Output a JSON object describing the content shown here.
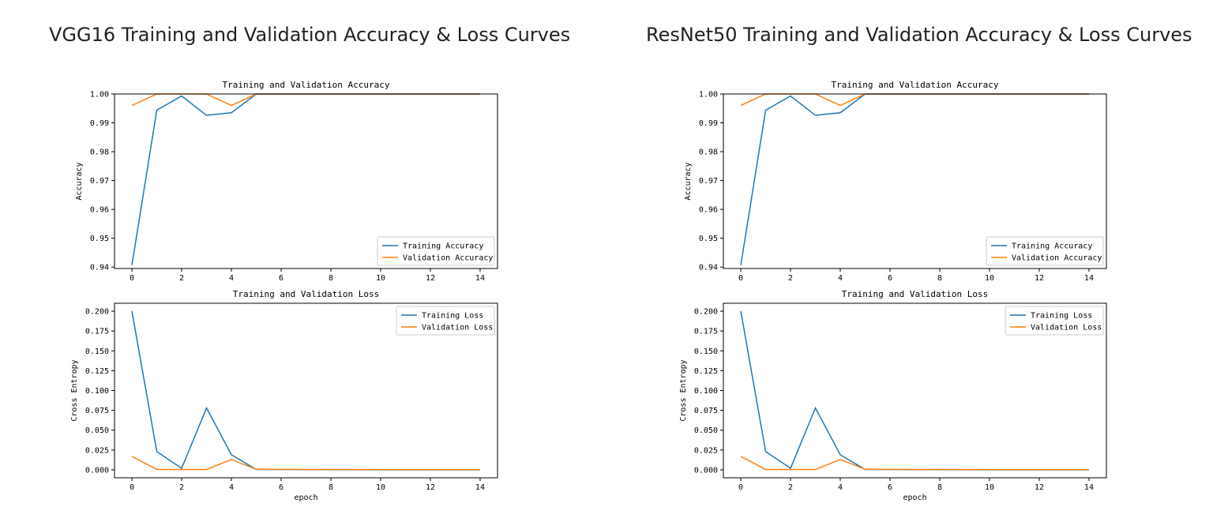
{
  "panels": [
    {
      "title": "VGG16 Training and Validation Accuracy & Loss Curves",
      "chart_data": [
        {
          "type": "line",
          "title": "Training and Validation Accuracy",
          "xlabel": "",
          "ylabel": "Accuracy",
          "xlim": [
            -0.7,
            14.7
          ],
          "ylim": [
            0.9395,
            1.0
          ],
          "xticks": [
            0,
            2,
            4,
            6,
            8,
            10,
            12,
            14
          ],
          "yticks": [
            0.94,
            0.95,
            0.96,
            0.97,
            0.98,
            0.99,
            1.0
          ],
          "ytick_labels": [
            "0.94",
            "0.95",
            "0.96",
            "0.97",
            "0.98",
            "0.99",
            "1.00"
          ],
          "legend_position": "lower-right",
          "series": [
            {
              "name": "Training Accuracy",
              "color": "#1f77b4",
              "x": [
                0,
                1,
                2,
                3,
                4,
                5,
                6,
                7,
                8,
                9,
                10,
                11,
                12,
                13,
                14
              ],
              "y": [
                0.9407,
                0.9944,
                0.9993,
                0.9926,
                0.9935,
                1.0,
                1.0,
                1.0,
                1.0,
                1.0,
                1.0,
                1.0,
                1.0,
                1.0,
                1.0
              ]
            },
            {
              "name": "Validation Accuracy",
              "color": "#ff7f0e",
              "x": [
                0,
                1,
                2,
                3,
                4,
                5,
                6,
                7,
                8,
                9,
                10,
                11,
                12,
                13,
                14
              ],
              "y": [
                0.996,
                1.0,
                1.0,
                1.0,
                0.996,
                1.0,
                1.0,
                1.0,
                1.0,
                1.0,
                1.0,
                1.0,
                1.0,
                1.0,
                1.0
              ]
            }
          ]
        },
        {
          "type": "line",
          "title": "Training and Validation Loss",
          "xlabel": "epoch",
          "ylabel": "Cross Entropy",
          "xlim": [
            -0.7,
            14.7
          ],
          "ylim": [
            -0.01,
            0.21
          ],
          "xticks": [
            0,
            2,
            4,
            6,
            8,
            10,
            12,
            14
          ],
          "yticks": [
            0.0,
            0.025,
            0.05,
            0.075,
            0.1,
            0.125,
            0.15,
            0.175,
            0.2
          ],
          "ytick_labels": [
            "0.000",
            "0.025",
            "0.050",
            "0.075",
            "0.100",
            "0.125",
            "0.150",
            "0.175",
            "0.200"
          ],
          "legend_position": "upper-right",
          "series": [
            {
              "name": "Training Loss",
              "color": "#1f77b4",
              "x": [
                0,
                1,
                2,
                3,
                4,
                5,
                6,
                7,
                8,
                9,
                10,
                11,
                12,
                13,
                14
              ],
              "y": [
                0.2,
                0.023,
                0.002,
                0.078,
                0.019,
                0.0005,
                0.0004,
                0.0003,
                0.0002,
                0.0002,
                0.0001,
                0.0001,
                0.0001,
                0.0001,
                0.0001
              ]
            },
            {
              "name": "Validation Loss",
              "color": "#ff7f0e",
              "x": [
                0,
                1,
                2,
                3,
                4,
                5,
                6,
                7,
                8,
                9,
                10,
                11,
                12,
                13,
                14
              ],
              "y": [
                0.017,
                0.0005,
                0.0005,
                0.0005,
                0.013,
                0.0008,
                0.0006,
                0.0005,
                0.0004,
                0.0004,
                0.0003,
                0.0003,
                0.0003,
                0.0003,
                0.0003
              ]
            }
          ]
        }
      ]
    },
    {
      "title": "ResNet50 Training and Validation Accuracy & Loss Curves",
      "chart_data": [
        {
          "type": "line",
          "title": "Training and Validation Accuracy",
          "xlabel": "",
          "ylabel": "Accuracy",
          "xlim": [
            -0.7,
            14.7
          ],
          "ylim": [
            0.9395,
            1.0
          ],
          "xticks": [
            0,
            2,
            4,
            6,
            8,
            10,
            12,
            14
          ],
          "yticks": [
            0.94,
            0.95,
            0.96,
            0.97,
            0.98,
            0.99,
            1.0
          ],
          "ytick_labels": [
            "0.94",
            "0.95",
            "0.96",
            "0.97",
            "0.98",
            "0.99",
            "1.00"
          ],
          "legend_position": "lower-right",
          "series": [
            {
              "name": "Training Accuracy",
              "color": "#1f77b4",
              "x": [
                0,
                1,
                2,
                3,
                4,
                5,
                6,
                7,
                8,
                9,
                10,
                11,
                12,
                13,
                14
              ],
              "y": [
                0.9407,
                0.9944,
                0.9993,
                0.9926,
                0.9935,
                1.0,
                1.0,
                1.0,
                1.0,
                1.0,
                1.0,
                1.0,
                1.0,
                1.0,
                1.0
              ]
            },
            {
              "name": "Validation Accuracy",
              "color": "#ff7f0e",
              "x": [
                0,
                1,
                2,
                3,
                4,
                5,
                6,
                7,
                8,
                9,
                10,
                11,
                12,
                13,
                14
              ],
              "y": [
                0.996,
                1.0,
                1.0,
                1.0,
                0.996,
                1.0,
                1.0,
                1.0,
                1.0,
                1.0,
                1.0,
                1.0,
                1.0,
                1.0,
                1.0
              ]
            }
          ]
        },
        {
          "type": "line",
          "title": "Training and Validation Loss",
          "xlabel": "epoch",
          "ylabel": "Cross Entropy",
          "xlim": [
            -0.7,
            14.7
          ],
          "ylim": [
            -0.01,
            0.21
          ],
          "xticks": [
            0,
            2,
            4,
            6,
            8,
            10,
            12,
            14
          ],
          "yticks": [
            0.0,
            0.025,
            0.05,
            0.075,
            0.1,
            0.125,
            0.15,
            0.175,
            0.2
          ],
          "ytick_labels": [
            "0.000",
            "0.025",
            "0.050",
            "0.075",
            "0.100",
            "0.125",
            "0.150",
            "0.175",
            "0.200"
          ],
          "legend_position": "upper-right",
          "series": [
            {
              "name": "Training Loss",
              "color": "#1f77b4",
              "x": [
                0,
                1,
                2,
                3,
                4,
                5,
                6,
                7,
                8,
                9,
                10,
                11,
                12,
                13,
                14
              ],
              "y": [
                0.2,
                0.023,
                0.002,
                0.078,
                0.019,
                0.0005,
                0.0004,
                0.0003,
                0.0002,
                0.0002,
                0.0001,
                0.0001,
                0.0001,
                0.0001,
                0.0001
              ]
            },
            {
              "name": "Validation Loss",
              "color": "#ff7f0e",
              "x": [
                0,
                1,
                2,
                3,
                4,
                5,
                6,
                7,
                8,
                9,
                10,
                11,
                12,
                13,
                14
              ],
              "y": [
                0.017,
                0.0005,
                0.0005,
                0.0005,
                0.013,
                0.0008,
                0.0006,
                0.0005,
                0.0004,
                0.0004,
                0.0003,
                0.0003,
                0.0003,
                0.0003,
                0.0003
              ]
            }
          ]
        }
      ]
    }
  ]
}
